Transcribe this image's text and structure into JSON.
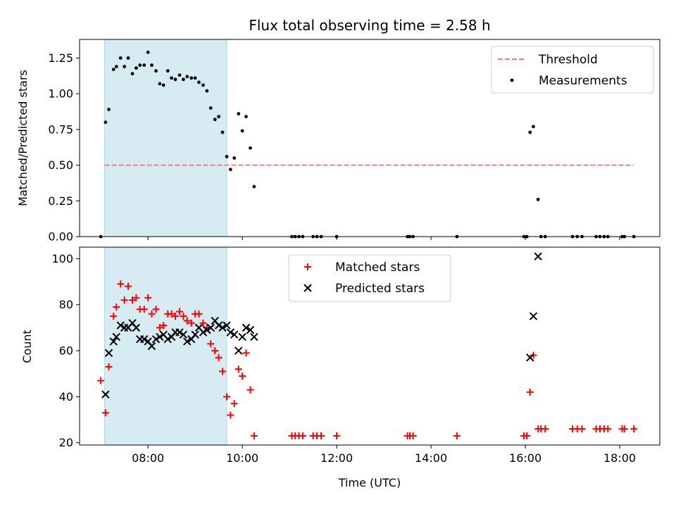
{
  "title": "Flux total observing time = 2.58 h",
  "colors": {
    "highlight": "#add8e6",
    "threshold": "#f08080",
    "measurement": "#000000",
    "matched": "#ff0000",
    "predicted": "#000000"
  },
  "chart_data": [
    {
      "type": "scatter",
      "title": "Flux total observing time = 2.58 h",
      "xlabel": "",
      "ylabel": "Matched/Predicted stars",
      "xlim": [
        6.55,
        18.85
      ],
      "ylim": [
        0,
        1.38
      ],
      "yticks": [
        0,
        0.25,
        0.5,
        0.75,
        1.0,
        1.25
      ],
      "ytick_labels": [
        "0.00",
        "0.25",
        "0.50",
        "0.75",
        "1.00",
        "1.25"
      ],
      "shaded_region": [
        7.08,
        9.67
      ],
      "threshold": {
        "label": "Threshold",
        "y": 0.5,
        "x": [
          7.08,
          18.3
        ],
        "style": "dashed"
      },
      "legend": {
        "position": "top-right",
        "entries": [
          "Threshold",
          "Measurements"
        ]
      },
      "series": [
        {
          "name": "Measurements",
          "marker": "dot",
          "points": [
            [
              7.0,
              0.0
            ],
            [
              7.1,
              0.8
            ],
            [
              7.17,
              0.89
            ],
            [
              7.27,
              1.17
            ],
            [
              7.33,
              1.19
            ],
            [
              7.42,
              1.25
            ],
            [
              7.5,
              1.19
            ],
            [
              7.58,
              1.25
            ],
            [
              7.67,
              1.14
            ],
            [
              7.75,
              1.18
            ],
            [
              7.83,
              1.2
            ],
            [
              7.92,
              1.2
            ],
            [
              8.0,
              1.29
            ],
            [
              8.08,
              1.2
            ],
            [
              8.17,
              1.16
            ],
            [
              8.25,
              1.07
            ],
            [
              8.33,
              1.06
            ],
            [
              8.42,
              1.16
            ],
            [
              8.5,
              1.11
            ],
            [
              8.58,
              1.1
            ],
            [
              8.67,
              1.13
            ],
            [
              8.75,
              1.1
            ],
            [
              8.83,
              1.12
            ],
            [
              8.92,
              1.11
            ],
            [
              9.0,
              1.11
            ],
            [
              9.08,
              1.08
            ],
            [
              9.17,
              1.06
            ],
            [
              9.25,
              1.02
            ],
            [
              9.33,
              0.9
            ],
            [
              9.42,
              0.82
            ],
            [
              9.5,
              0.84
            ],
            [
              9.58,
              0.73
            ],
            [
              9.67,
              0.56
            ],
            [
              9.75,
              0.47
            ],
            [
              9.83,
              0.55
            ],
            [
              9.92,
              0.86
            ],
            [
              10.0,
              0.74
            ],
            [
              10.08,
              0.84
            ],
            [
              10.17,
              0.62
            ],
            [
              10.25,
              0.35
            ],
            [
              11.05,
              0.0
            ],
            [
              11.12,
              0.0
            ],
            [
              11.2,
              0.0
            ],
            [
              11.28,
              0.0
            ],
            [
              11.5,
              0.0
            ],
            [
              11.58,
              0.0
            ],
            [
              11.67,
              0.0
            ],
            [
              12.0,
              0.0
            ],
            [
              13.5,
              0.0
            ],
            [
              13.55,
              0.0
            ],
            [
              13.62,
              0.0
            ],
            [
              14.55,
              0.0
            ],
            [
              15.97,
              0.0
            ],
            [
              16.03,
              0.0
            ],
            [
              16.1,
              0.73
            ],
            [
              16.17,
              0.77
            ],
            [
              16.27,
              0.26
            ],
            [
              16.33,
              0.0
            ],
            [
              16.42,
              0.0
            ],
            [
              17.0,
              0.0
            ],
            [
              17.1,
              0.0
            ],
            [
              17.2,
              0.0
            ],
            [
              17.5,
              0.0
            ],
            [
              17.58,
              0.0
            ],
            [
              17.67,
              0.0
            ],
            [
              17.75,
              0.0
            ],
            [
              18.05,
              0.0
            ],
            [
              18.1,
              0.0
            ],
            [
              18.3,
              0.0
            ]
          ]
        }
      ]
    },
    {
      "type": "scatter",
      "title": "",
      "xlabel": "Time (UTC)",
      "ylabel": "Count",
      "xlim": [
        6.55,
        18.85
      ],
      "ylim": [
        19,
        105
      ],
      "xticks": [
        8,
        10,
        12,
        14,
        16,
        18
      ],
      "xtick_labels": [
        "08:00",
        "10:00",
        "12:00",
        "14:00",
        "16:00",
        "18:00"
      ],
      "yticks": [
        20,
        40,
        60,
        80,
        100
      ],
      "ytick_labels": [
        "20",
        "40",
        "60",
        "80",
        "100"
      ],
      "shaded_region": [
        7.08,
        9.67
      ],
      "legend": {
        "position": "top-center",
        "entries": [
          "Matched stars",
          "Predicted stars"
        ]
      },
      "series": [
        {
          "name": "Matched stars",
          "marker": "plus",
          "points": [
            [
              7.0,
              47
            ],
            [
              7.1,
              33
            ],
            [
              7.17,
              53
            ],
            [
              7.27,
              75
            ],
            [
              7.33,
              79
            ],
            [
              7.42,
              89
            ],
            [
              7.5,
              82
            ],
            [
              7.58,
              88
            ],
            [
              7.67,
              82
            ],
            [
              7.75,
              83
            ],
            [
              7.83,
              78
            ],
            [
              7.92,
              78
            ],
            [
              8.0,
              83
            ],
            [
              8.08,
              76
            ],
            [
              8.17,
              78
            ],
            [
              8.25,
              70
            ],
            [
              8.33,
              71
            ],
            [
              8.42,
              76
            ],
            [
              8.5,
              76
            ],
            [
              8.58,
              75
            ],
            [
              8.67,
              77
            ],
            [
              8.75,
              75
            ],
            [
              8.83,
              73
            ],
            [
              8.92,
              72
            ],
            [
              9.0,
              76
            ],
            [
              9.08,
              76
            ],
            [
              9.17,
              72
            ],
            [
              9.25,
              70
            ],
            [
              9.33,
              63
            ],
            [
              9.42,
              60
            ],
            [
              9.5,
              57
            ],
            [
              9.58,
              51
            ],
            [
              9.67,
              40
            ],
            [
              9.75,
              32
            ],
            [
              9.83,
              37
            ],
            [
              9.92,
              52
            ],
            [
              10.0,
              49
            ],
            [
              10.08,
              59
            ],
            [
              10.17,
              43
            ],
            [
              10.25,
              23
            ],
            [
              11.05,
              23
            ],
            [
              11.12,
              23
            ],
            [
              11.2,
              23
            ],
            [
              11.28,
              23
            ],
            [
              11.5,
              23
            ],
            [
              11.58,
              23
            ],
            [
              11.67,
              23
            ],
            [
              12.0,
              23
            ],
            [
              13.5,
              23
            ],
            [
              13.55,
              23
            ],
            [
              13.62,
              23
            ],
            [
              14.55,
              23
            ],
            [
              15.97,
              23
            ],
            [
              16.03,
              23
            ],
            [
              16.1,
              42
            ],
            [
              16.17,
              58
            ],
            [
              16.27,
              26
            ],
            [
              16.33,
              26
            ],
            [
              16.42,
              26
            ],
            [
              17.0,
              26
            ],
            [
              17.1,
              26
            ],
            [
              17.2,
              26
            ],
            [
              17.5,
              26
            ],
            [
              17.58,
              26
            ],
            [
              17.67,
              26
            ],
            [
              17.75,
              26
            ],
            [
              18.05,
              26
            ],
            [
              18.1,
              26
            ],
            [
              18.3,
              26
            ]
          ]
        },
        {
          "name": "Predicted stars",
          "marker": "x",
          "points": [
            [
              7.1,
              41
            ],
            [
              7.17,
              59
            ],
            [
              7.27,
              64
            ],
            [
              7.33,
              66
            ],
            [
              7.42,
              71
            ],
            [
              7.5,
              70
            ],
            [
              7.58,
              70
            ],
            [
              7.67,
              72
            ],
            [
              7.75,
              70
            ],
            [
              7.83,
              65
            ],
            [
              7.92,
              65
            ],
            [
              8.0,
              64
            ],
            [
              8.08,
              62
            ],
            [
              8.17,
              65
            ],
            [
              8.25,
              66
            ],
            [
              8.33,
              67
            ],
            [
              8.42,
              65
            ],
            [
              8.5,
              66
            ],
            [
              8.58,
              68
            ],
            [
              8.67,
              68
            ],
            [
              8.75,
              67
            ],
            [
              8.83,
              64
            ],
            [
              8.92,
              65
            ],
            [
              9.0,
              67
            ],
            [
              9.08,
              70
            ],
            [
              9.17,
              68
            ],
            [
              9.25,
              69
            ],
            [
              9.33,
              70
            ],
            [
              9.42,
              73
            ],
            [
              9.5,
              71
            ],
            [
              9.58,
              70
            ],
            [
              9.67,
              71
            ],
            [
              9.75,
              68
            ],
            [
              9.83,
              67
            ],
            [
              9.92,
              60
            ],
            [
              10.0,
              66
            ],
            [
              10.08,
              70
            ],
            [
              10.17,
              69
            ],
            [
              10.25,
              66
            ],
            [
              16.1,
              57
            ],
            [
              16.17,
              75
            ],
            [
              16.27,
              101
            ]
          ]
        }
      ]
    }
  ]
}
